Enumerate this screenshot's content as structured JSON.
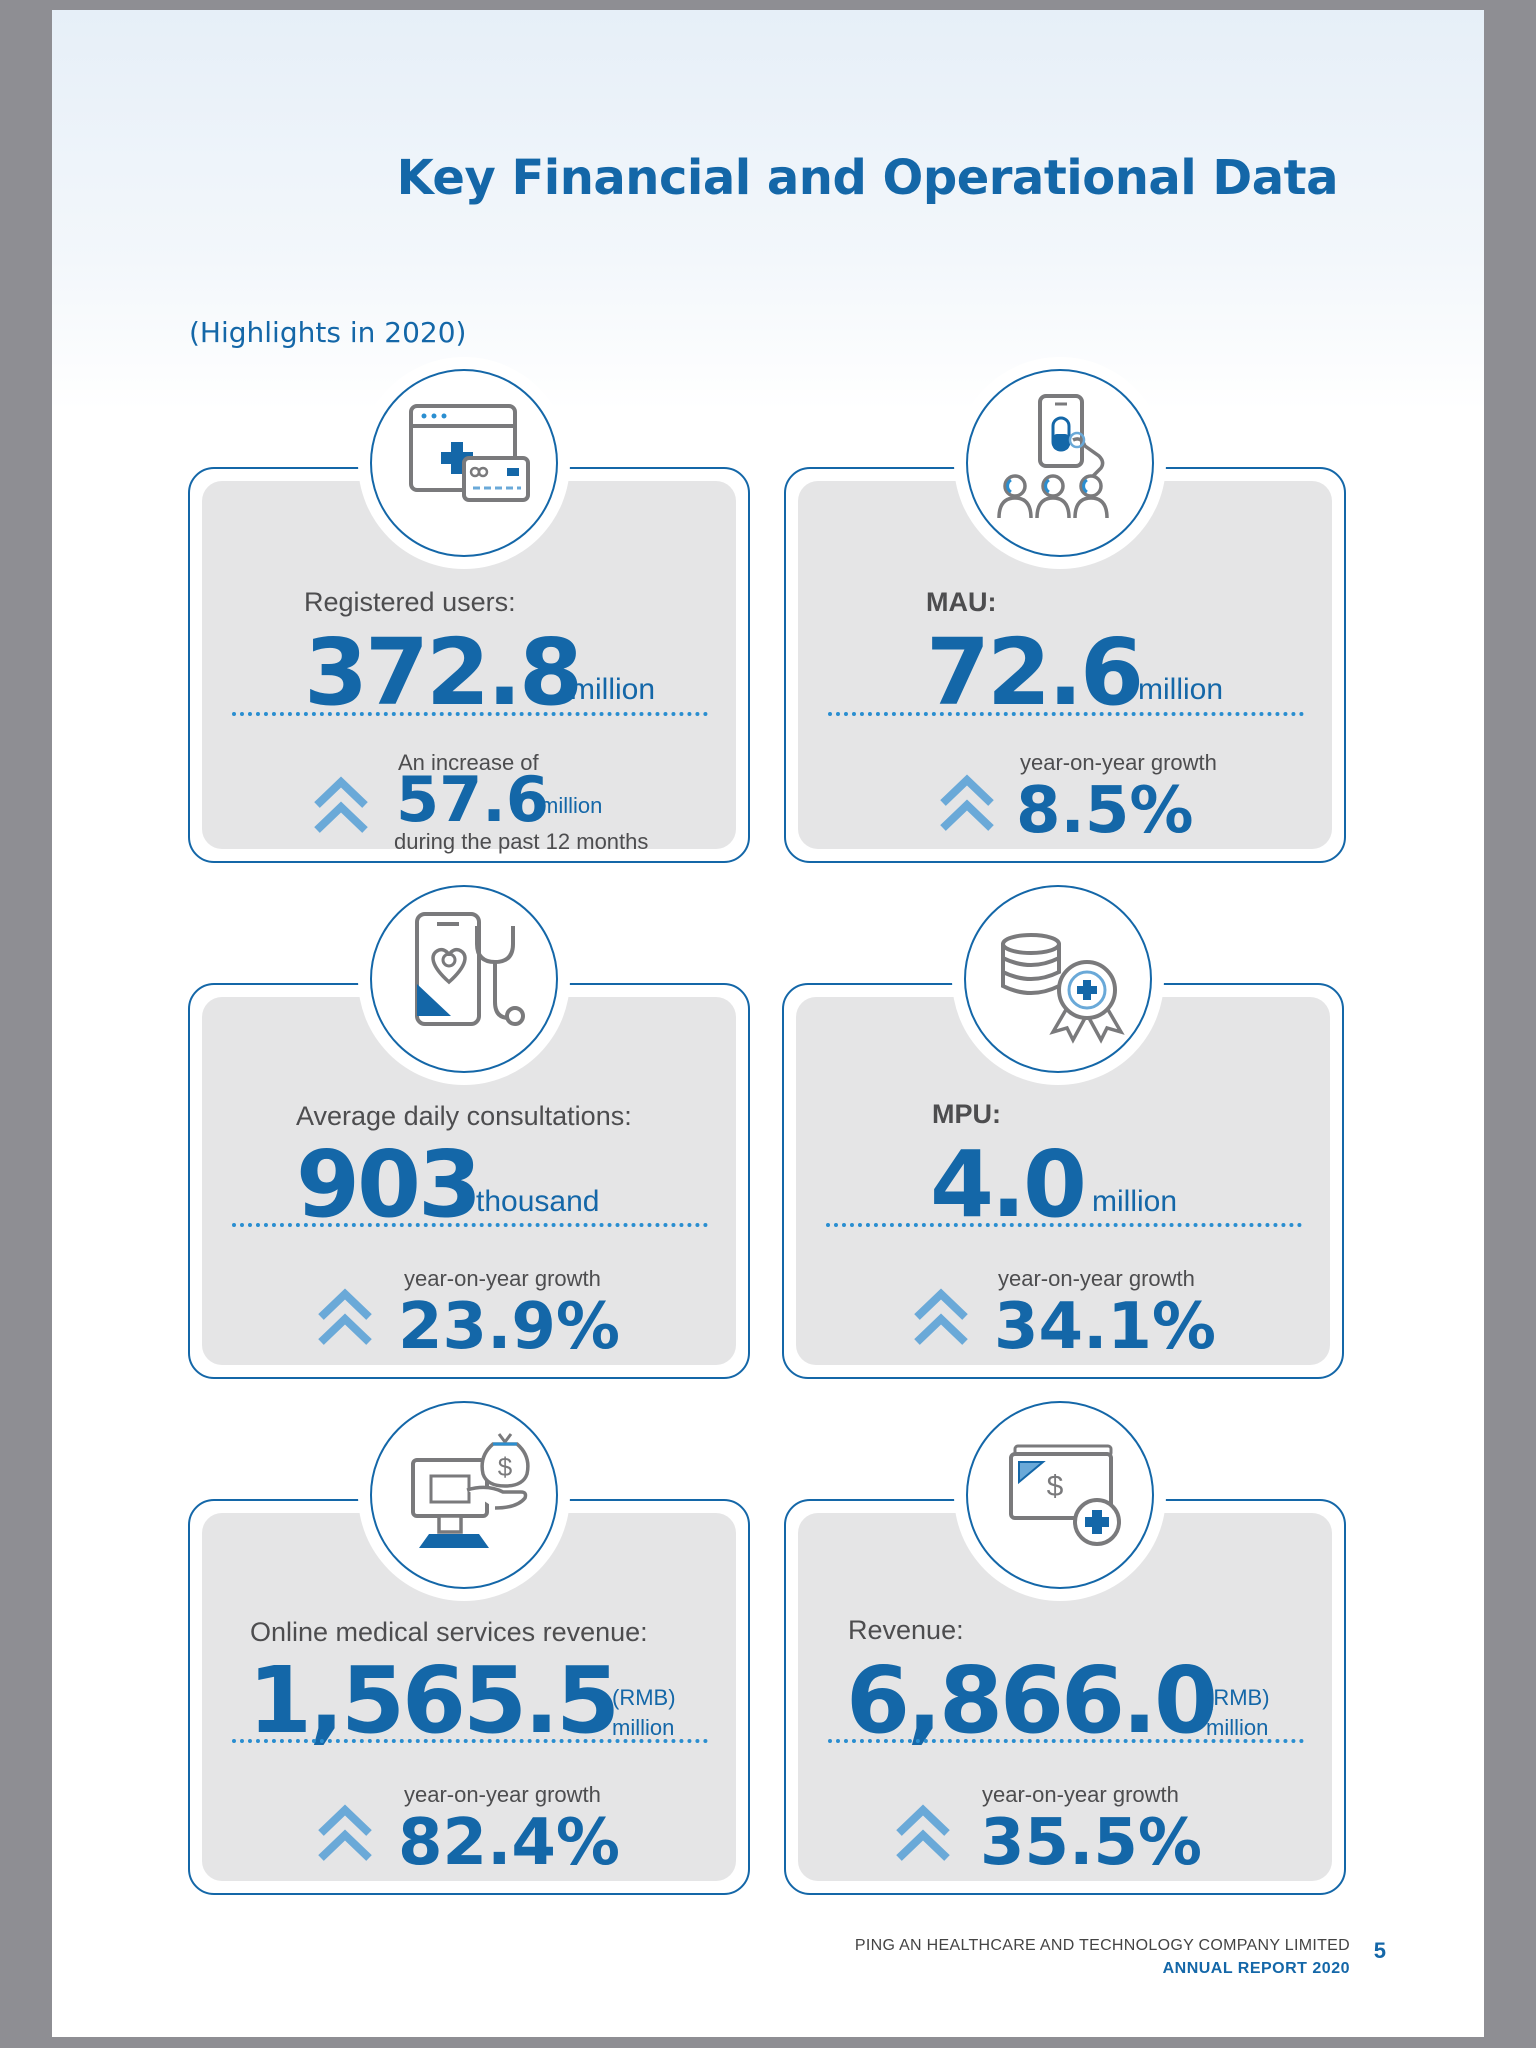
{
  "header": {
    "title": "Key Financial and Operational Data",
    "subtitle": "(Highlights in 2020)"
  },
  "cards": [
    {
      "icon": "web-payment-icon",
      "label": "Registered users:",
      "value": "372.8",
      "unit": "million",
      "increase_prefix": "An increase of",
      "increase_value": "57.6",
      "increase_unit": "million",
      "increase_suffix": "during the past 12 months"
    },
    {
      "icon": "mobile-users-icon",
      "label": "MAU:",
      "value": "72.6",
      "unit": "million",
      "growth_label": "year-on-year growth",
      "growth_value": "8.5%"
    },
    {
      "icon": "phone-stethoscope-icon",
      "label": "Average daily consultations:",
      "value": "903",
      "unit": "thousand",
      "growth_label": "year-on-year growth",
      "growth_value": "23.9%"
    },
    {
      "icon": "coins-badge-icon",
      "label": "MPU:",
      "value": "4.0",
      "unit": "million",
      "growth_label": "year-on-year growth",
      "growth_value": "34.1%"
    },
    {
      "icon": "computer-money-icon",
      "label": "Online medical services revenue:",
      "value": "1,565.5",
      "unit_line1": "(RMB)",
      "unit_line2": "million",
      "growth_label": "year-on-year growth",
      "growth_value": "82.4%"
    },
    {
      "icon": "cash-medical-icon",
      "label": "Revenue:",
      "value": "6,866.0",
      "unit_line1": "(RMB)",
      "unit_line2": "million",
      "growth_label": "year-on-year growth",
      "growth_value": "35.5%"
    }
  ],
  "footer": {
    "company": "PING AN HEALTHCARE AND TECHNOLOGY COMPANY LIMITED",
    "report": "ANNUAL REPORT 2020",
    "page_number": "5"
  },
  "colors": {
    "brand_blue": "#1467a8",
    "accent_light_blue": "#6aa9d8",
    "card_gray": "#e5e5e6",
    "page_background": "#8e8e93"
  }
}
